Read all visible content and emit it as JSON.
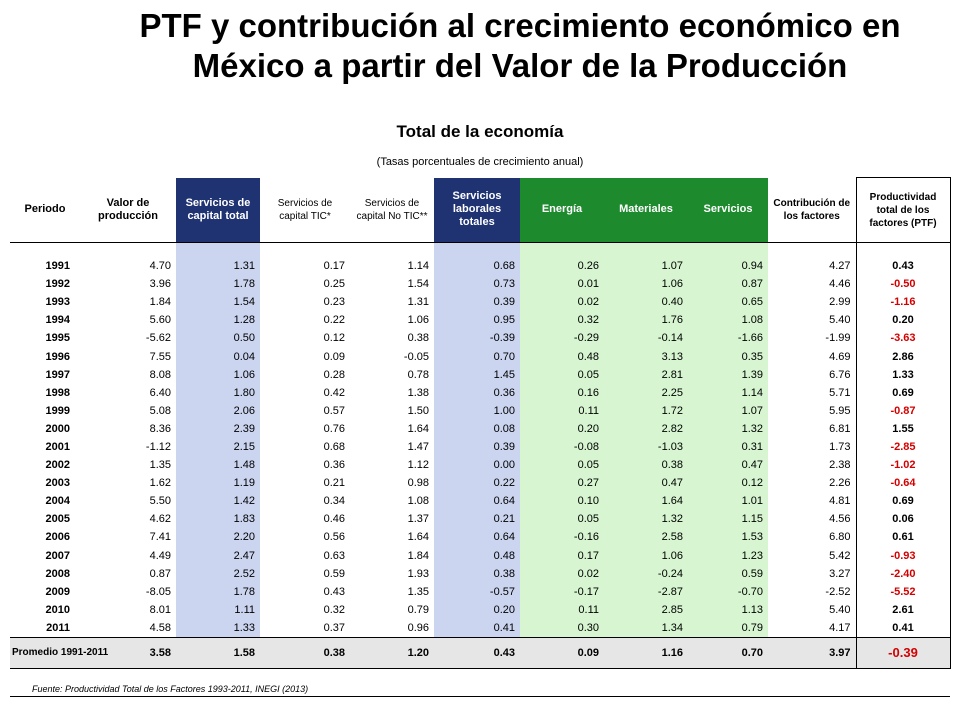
{
  "title": "PTF y contribución al crecimiento económico en México a partir del Valor de la Producción",
  "subtitle": "Total de la economía",
  "note": "(Tasas porcentuales de crecimiento anual)",
  "headers": {
    "periodo": "Periodo",
    "valor": "Valor de producción",
    "serv_capital": "Servicios de capital total",
    "serv_tic": "Servicios de capital TIC*",
    "serv_notic": "Servicios de capital No TIC**",
    "serv_laborales": "Servicios laborales totales",
    "energia": "Energía",
    "materiales": "Materiales",
    "servicios": "Servicios",
    "contribucion": "Contribución de los factores",
    "ptf": "Productividad total de los factores (PTF)"
  },
  "rows": [
    [
      "1991",
      "4.70",
      "1.31",
      "0.17",
      "1.14",
      "0.68",
      "0.26",
      "1.07",
      "0.94",
      "4.27",
      "0.43"
    ],
    [
      "1992",
      "3.96",
      "1.78",
      "0.25",
      "1.54",
      "0.73",
      "0.01",
      "1.06",
      "0.87",
      "4.46",
      "-0.50"
    ],
    [
      "1993",
      "1.84",
      "1.54",
      "0.23",
      "1.31",
      "0.39",
      "0.02",
      "0.40",
      "0.65",
      "2.99",
      "-1.16"
    ],
    [
      "1994",
      "5.60",
      "1.28",
      "0.22",
      "1.06",
      "0.95",
      "0.32",
      "1.76",
      "1.08",
      "5.40",
      "0.20"
    ],
    [
      "1995",
      "-5.62",
      "0.50",
      "0.12",
      "0.38",
      "-0.39",
      "-0.29",
      "-0.14",
      "-1.66",
      "-1.99",
      "-3.63"
    ],
    [
      "1996",
      "7.55",
      "0.04",
      "0.09",
      "-0.05",
      "0.70",
      "0.48",
      "3.13",
      "0.35",
      "4.69",
      "2.86"
    ],
    [
      "1997",
      "8.08",
      "1.06",
      "0.28",
      "0.78",
      "1.45",
      "0.05",
      "2.81",
      "1.39",
      "6.76",
      "1.33"
    ],
    [
      "1998",
      "6.40",
      "1.80",
      "0.42",
      "1.38",
      "0.36",
      "0.16",
      "2.25",
      "1.14",
      "5.71",
      "0.69"
    ],
    [
      "1999",
      "5.08",
      "2.06",
      "0.57",
      "1.50",
      "1.00",
      "0.11",
      "1.72",
      "1.07",
      "5.95",
      "-0.87"
    ],
    [
      "2000",
      "8.36",
      "2.39",
      "0.76",
      "1.64",
      "0.08",
      "0.20",
      "2.82",
      "1.32",
      "6.81",
      "1.55"
    ],
    [
      "2001",
      "-1.12",
      "2.15",
      "0.68",
      "1.47",
      "0.39",
      "-0.08",
      "-1.03",
      "0.31",
      "1.73",
      "-2.85"
    ],
    [
      "2002",
      "1.35",
      "1.48",
      "0.36",
      "1.12",
      "0.00",
      "0.05",
      "0.38",
      "0.47",
      "2.38",
      "-1.02"
    ],
    [
      "2003",
      "1.62",
      "1.19",
      "0.21",
      "0.98",
      "0.22",
      "0.27",
      "0.47",
      "0.12",
      "2.26",
      "-0.64"
    ],
    [
      "2004",
      "5.50",
      "1.42",
      "0.34",
      "1.08",
      "0.64",
      "0.10",
      "1.64",
      "1.01",
      "4.81",
      "0.69"
    ],
    [
      "2005",
      "4.62",
      "1.83",
      "0.46",
      "1.37",
      "0.21",
      "0.05",
      "1.32",
      "1.15",
      "4.56",
      "0.06"
    ],
    [
      "2006",
      "7.41",
      "2.20",
      "0.56",
      "1.64",
      "0.64",
      "-0.16",
      "2.58",
      "1.53",
      "6.80",
      "0.61"
    ],
    [
      "2007",
      "4.49",
      "2.47",
      "0.63",
      "1.84",
      "0.48",
      "0.17",
      "1.06",
      "1.23",
      "5.42",
      "-0.93"
    ],
    [
      "2008",
      "0.87",
      "2.52",
      "0.59",
      "1.93",
      "0.38",
      "0.02",
      "-0.24",
      "0.59",
      "3.27",
      "-2.40"
    ],
    [
      "2009",
      "-8.05",
      "1.78",
      "0.43",
      "1.35",
      "-0.57",
      "-0.17",
      "-2.87",
      "-0.70",
      "-2.52",
      "-5.52"
    ],
    [
      "2010",
      "8.01",
      "1.11",
      "0.32",
      "0.79",
      "0.20",
      "0.11",
      "2.85",
      "1.13",
      "5.40",
      "2.61"
    ],
    [
      "2011",
      "4.58",
      "1.33",
      "0.37",
      "0.96",
      "0.41",
      "0.30",
      "1.34",
      "0.79",
      "4.17",
      "0.41"
    ]
  ],
  "average": [
    "Promedio 1991-2011",
    "3.58",
    "1.58",
    "0.38",
    "1.20",
    "0.43",
    "0.09",
    "1.16",
    "0.70",
    "3.97",
    "-0.39"
  ],
  "source": "Fuente: Productividad Total de los Factores 1993-2011, INEGI (2013)",
  "colors": {
    "blue_header": "#1f3373",
    "green_header": "#1e8a2e",
    "blue_cell": "#cbd5f0",
    "green_cell": "#d6f5d0",
    "negative_ptf": "#d40000"
  }
}
